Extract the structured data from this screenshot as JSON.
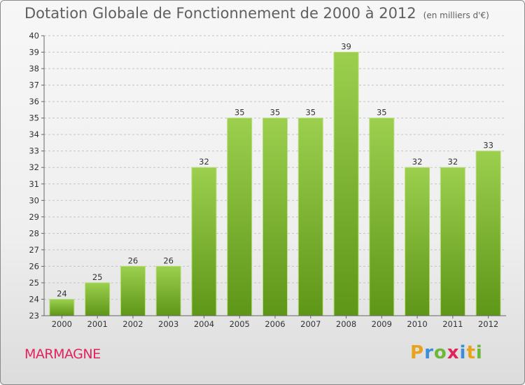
{
  "header": {
    "title": "Dotation Globale de Fonctionnement de 2000 à 2012",
    "unit": "(en milliers d'€)"
  },
  "commune": "MARMAGNE",
  "logo": {
    "letters": [
      "P",
      "r",
      "o",
      "x",
      "i",
      "t",
      "i"
    ],
    "colors": [
      "#e8a21c",
      "#3b8ed8",
      "#6db83b",
      "#e0235c",
      "#3b8ed8",
      "#e8a21c",
      "#6db83b"
    ]
  },
  "colors": {
    "bar_light": "#9ccf4e",
    "bar_dark": "#5e9618",
    "grid": "#c4c4c4"
  },
  "chart_data": {
    "type": "bar",
    "title": "Dotation Globale de Fonctionnement de 2000 à 2012",
    "subtitle": "(en milliers d'€)",
    "categories": [
      "2000",
      "2001",
      "2002",
      "2003",
      "2004",
      "2005",
      "2006",
      "2007",
      "2008",
      "2009",
      "2010",
      "2011",
      "2012"
    ],
    "values": [
      24,
      25,
      26,
      26,
      32,
      35,
      35,
      35,
      39,
      35,
      32,
      32,
      33
    ],
    "ylim": [
      23,
      40
    ],
    "yticks": [
      23,
      24,
      25,
      26,
      27,
      28,
      29,
      30,
      31,
      32,
      33,
      34,
      35,
      36,
      37,
      38,
      39,
      40
    ],
    "grid": true,
    "legend": "none"
  }
}
